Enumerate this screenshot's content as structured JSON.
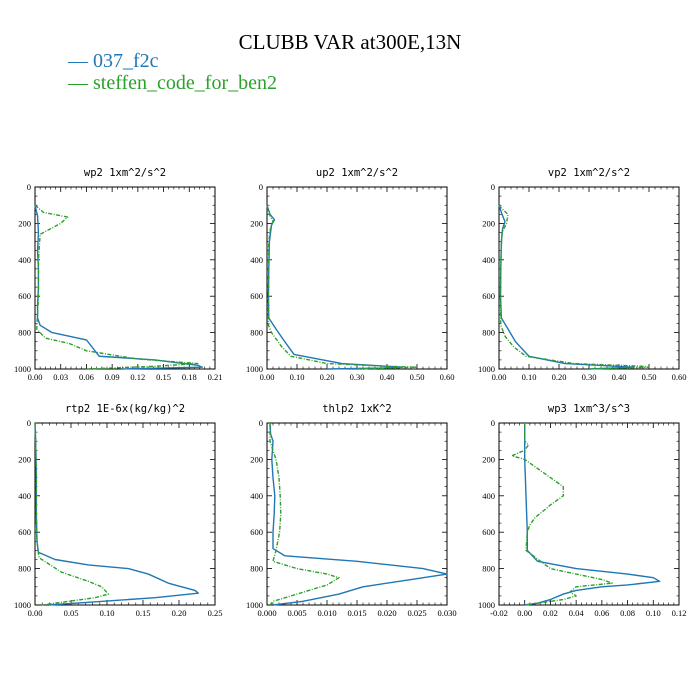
{
  "title": "CLUBB VAR at300E,13N",
  "legend": [
    {
      "label": "037_f2c",
      "color": "#1f77b4"
    },
    {
      "label": "steffen_code_for_ben2",
      "color": "#2ca02c"
    }
  ],
  "chart_data": [
    {
      "type": "line",
      "title": "wp2   1xm^2/s^2",
      "xlim": [
        0,
        0.21
      ],
      "ylim": [
        1000,
        0
      ],
      "x_ticks": [
        "0.00",
        "0.03",
        "0.06",
        "0.09",
        "0.12",
        "0.15",
        "0.18",
        "0.21"
      ],
      "y_ticks": [
        "0",
        "200",
        "400",
        "600",
        "800",
        "1000"
      ],
      "series": [
        {
          "name": "037_f2c",
          "color": "#1f77b4",
          "points": [
            [
              0.0,
              100
            ],
            [
              0.003,
              160
            ],
            [
              0.004,
              250
            ],
            [
              0.003,
              350
            ],
            [
              0.004,
              450
            ],
            [
              0.004,
              550
            ],
            [
              0.003,
              650
            ],
            [
              0.003,
              720
            ],
            [
              0.006,
              760
            ],
            [
              0.02,
              800
            ],
            [
              0.06,
              840
            ],
            [
              0.075,
              930
            ],
            [
              0.14,
              950
            ],
            [
              0.19,
              980
            ],
            [
              0.195,
              990
            ],
            [
              0.1,
              1000
            ]
          ]
        },
        {
          "name": "steffen_code_for_ben2",
          "color": "#2ca02c",
          "points": [
            [
              0.0,
              100
            ],
            [
              0.01,
              140
            ],
            [
              0.038,
              165
            ],
            [
              0.03,
              200
            ],
            [
              0.006,
              260
            ],
            [
              0.004,
              400
            ],
            [
              0.004,
              600
            ],
            [
              0.003,
              700
            ],
            [
              0.002,
              780
            ],
            [
              0.012,
              830
            ],
            [
              0.04,
              860
            ],
            [
              0.06,
              900
            ],
            [
              0.12,
              945
            ],
            [
              0.19,
              970
            ],
            [
              0.14,
              985
            ],
            [
              0.06,
              1000
            ]
          ]
        }
      ]
    },
    {
      "type": "line",
      "title": "up2   1xm^2/s^2",
      "xlim": [
        0,
        0.6
      ],
      "ylim": [
        1000,
        0
      ],
      "x_ticks": [
        "0.00",
        "0.10",
        "0.20",
        "0.30",
        "0.40",
        "0.50",
        "0.60"
      ],
      "y_ticks": [
        "0",
        "200",
        "400",
        "600",
        "800",
        "1000"
      ],
      "series": [
        {
          "name": "037_f2c",
          "color": "#1f77b4",
          "points": [
            [
              0.0,
              100
            ],
            [
              0.01,
              150
            ],
            [
              0.025,
              180
            ],
            [
              0.015,
              210
            ],
            [
              0.008,
              300
            ],
            [
              0.006,
              450
            ],
            [
              0.005,
              600
            ],
            [
              0.006,
              720
            ],
            [
              0.03,
              780
            ],
            [
              0.055,
              840
            ],
            [
              0.09,
              920
            ],
            [
              0.25,
              970
            ],
            [
              0.45,
              990
            ],
            [
              0.38,
              995
            ],
            [
              0.2,
              1000
            ]
          ]
        },
        {
          "name": "steffen_code_for_ben2",
          "color": "#2ca02c",
          "points": [
            [
              0.0,
              100
            ],
            [
              0.008,
              150
            ],
            [
              0.02,
              190
            ],
            [
              0.012,
              220
            ],
            [
              0.006,
              300
            ],
            [
              0.005,
              450
            ],
            [
              0.004,
              600
            ],
            [
              0.005,
              760
            ],
            [
              0.015,
              800
            ],
            [
              0.05,
              880
            ],
            [
              0.08,
              930
            ],
            [
              0.2,
              970
            ],
            [
              0.4,
              985
            ],
            [
              0.5,
              990
            ],
            [
              0.3,
              1000
            ]
          ]
        }
      ]
    },
    {
      "type": "line",
      "title": "vp2   1xm^2/s^2",
      "xlim": [
        0,
        0.6
      ],
      "ylim": [
        1000,
        0
      ],
      "x_ticks": [
        "0.00",
        "0.10",
        "0.20",
        "0.30",
        "0.40",
        "0.50",
        "0.60"
      ],
      "y_ticks": [
        "0",
        "200",
        "400",
        "600",
        "800",
        "1000"
      ],
      "series": [
        {
          "name": "037_f2c",
          "color": "#1f77b4",
          "points": [
            [
              0.0,
              100
            ],
            [
              0.01,
              150
            ],
            [
              0.02,
              190
            ],
            [
              0.012,
              230
            ],
            [
              0.008,
              300
            ],
            [
              0.006,
              450
            ],
            [
              0.005,
              600
            ],
            [
              0.008,
              720
            ],
            [
              0.03,
              780
            ],
            [
              0.055,
              850
            ],
            [
              0.1,
              930
            ],
            [
              0.22,
              970
            ],
            [
              0.45,
              990
            ],
            [
              0.3,
              1000
            ]
          ]
        },
        {
          "name": "steffen_code_for_ben2",
          "color": "#2ca02c",
          "points": [
            [
              0.0,
              100
            ],
            [
              0.01,
              120
            ],
            [
              0.03,
              150
            ],
            [
              0.025,
              200
            ],
            [
              0.01,
              250
            ],
            [
              0.006,
              400
            ],
            [
              0.005,
              600
            ],
            [
              0.006,
              760
            ],
            [
              0.02,
              820
            ],
            [
              0.05,
              880
            ],
            [
              0.09,
              930
            ],
            [
              0.25,
              970
            ],
            [
              0.48,
              985
            ],
            [
              0.5,
              990
            ],
            [
              0.3,
              1000
            ]
          ]
        }
      ]
    },
    {
      "type": "line",
      "title": "rtp2   1E-6x(kg/kg)^2",
      "xlim": [
        0,
        0.27
      ],
      "ylim": [
        1000,
        0
      ],
      "x_ticks": [
        "0.00",
        "0.05",
        "0.10",
        "0.15",
        "0.20",
        "0.25"
      ],
      "y_ticks": [
        "0",
        "200",
        "400",
        "600",
        "800",
        "1000"
      ],
      "series": [
        {
          "name": "037_f2c",
          "color": "#1f77b4",
          "points": [
            [
              0.0,
              0
            ],
            [
              0.001,
              100
            ],
            [
              0.002,
              300
            ],
            [
              0.002,
              500
            ],
            [
              0.003,
              650
            ],
            [
              0.005,
              710
            ],
            [
              0.03,
              750
            ],
            [
              0.08,
              780
            ],
            [
              0.14,
              800
            ],
            [
              0.17,
              830
            ],
            [
              0.2,
              880
            ],
            [
              0.24,
              920
            ],
            [
              0.245,
              935
            ],
            [
              0.18,
              960
            ],
            [
              0.08,
              985
            ],
            [
              0.02,
              1000
            ]
          ]
        },
        {
          "name": "steffen_code_for_ben2",
          "color": "#2ca02c",
          "points": [
            [
              0.0,
              0
            ],
            [
              0.001,
              100
            ],
            [
              0.002,
              300
            ],
            [
              0.002,
              500
            ],
            [
              0.003,
              650
            ],
            [
              0.006,
              740
            ],
            [
              0.04,
              820
            ],
            [
              0.08,
              870
            ],
            [
              0.1,
              900
            ],
            [
              0.11,
              940
            ],
            [
              0.09,
              960
            ],
            [
              0.04,
              985
            ],
            [
              0.01,
              1000
            ]
          ]
        }
      ]
    },
    {
      "type": "line",
      "title": "thlp2   1xK^2",
      "xlim": [
        0,
        0.03
      ],
      "ylim": [
        1000,
        0
      ],
      "x_ticks": [
        "0.000",
        "0.005",
        "0.010",
        "0.015",
        "0.020",
        "0.025",
        "0.030"
      ],
      "y_ticks": [
        "0",
        "200",
        "400",
        "600",
        "800",
        "1000"
      ],
      "series": [
        {
          "name": "037_f2c",
          "color": "#1f77b4",
          "points": [
            [
              0.0005,
              0
            ],
            [
              0.0006,
              60
            ],
            [
              0.001,
              100
            ],
            [
              0.0008,
              200
            ],
            [
              0.001,
              300
            ],
            [
              0.0013,
              400
            ],
            [
              0.0012,
              500
            ],
            [
              0.001,
              600
            ],
            [
              0.001,
              690
            ],
            [
              0.003,
              730
            ],
            [
              0.015,
              760
            ],
            [
              0.026,
              800
            ],
            [
              0.03,
              830
            ],
            [
              0.024,
              860
            ],
            [
              0.016,
              900
            ],
            [
              0.012,
              940
            ],
            [
              0.006,
              980
            ],
            [
              0.001,
              1000
            ]
          ]
        },
        {
          "name": "steffen_code_for_ben2",
          "color": "#2ca02c",
          "points": [
            [
              0.0005,
              0
            ],
            [
              0.0005,
              100
            ],
            [
              0.0015,
              200
            ],
            [
              0.002,
              300
            ],
            [
              0.0022,
              400
            ],
            [
              0.0023,
              500
            ],
            [
              0.0021,
              600
            ],
            [
              0.0015,
              700
            ],
            [
              0.001,
              760
            ],
            [
              0.005,
              800
            ],
            [
              0.01,
              830
            ],
            [
              0.012,
              850
            ],
            [
              0.01,
              890
            ],
            [
              0.007,
              920
            ],
            [
              0.004,
              950
            ],
            [
              0.001,
              980
            ],
            [
              0.0005,
              1000
            ]
          ]
        }
      ]
    },
    {
      "type": "line",
      "title": "wp3   1xm^3/s^3",
      "xlim": [
        -0.02,
        0.12
      ],
      "ylim": [
        1000,
        0
      ],
      "x_ticks": [
        "-0.02",
        "0.00",
        "0.02",
        "0.04",
        "0.06",
        "0.08",
        "0.10",
        "0.12"
      ],
      "y_ticks": [
        "0",
        "200",
        "400",
        "600",
        "800",
        "1000"
      ],
      "series": [
        {
          "name": "037_f2c",
          "color": "#1f77b4",
          "points": [
            [
              0.0,
              0
            ],
            [
              0.0,
              80
            ],
            [
              0.0,
              200
            ],
            [
              0.001,
              400
            ],
            [
              0.002,
              600
            ],
            [
              0.002,
              700
            ],
            [
              0.01,
              760
            ],
            [
              0.04,
              800
            ],
            [
              0.08,
              830
            ],
            [
              0.1,
              850
            ],
            [
              0.105,
              870
            ],
            [
              0.08,
              890
            ],
            [
              0.06,
              900
            ],
            [
              0.04,
              920
            ],
            [
              0.03,
              940
            ],
            [
              0.02,
              970
            ],
            [
              0.01,
              990
            ],
            [
              0.0,
              1000
            ]
          ]
        },
        {
          "name": "steffen_code_for_ben2",
          "color": "#2ca02c",
          "points": [
            [
              0.0,
              0
            ],
            [
              0.0,
              100
            ],
            [
              0.003,
              120
            ],
            [
              0.0,
              150
            ],
            [
              -0.01,
              180
            ],
            [
              0.0,
              200
            ],
            [
              0.01,
              250
            ],
            [
              0.02,
              300
            ],
            [
              0.03,
              350
            ],
            [
              0.03,
              400
            ],
            [
              0.02,
              450
            ],
            [
              0.015,
              480
            ],
            [
              0.008,
              520
            ],
            [
              0.004,
              560
            ],
            [
              0.002,
              600
            ],
            [
              0.001,
              700
            ],
            [
              0.02,
              800
            ],
            [
              0.06,
              860
            ],
            [
              0.068,
              880
            ],
            [
              0.04,
              900
            ],
            [
              0.035,
              930
            ],
            [
              0.04,
              950
            ],
            [
              0.03,
              970
            ],
            [
              0.01,
              990
            ],
            [
              0.0,
              1000
            ]
          ]
        }
      ]
    }
  ]
}
